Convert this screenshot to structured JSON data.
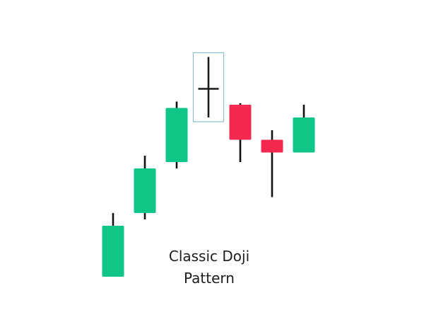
{
  "caption": {
    "line1": "Classic Doji",
    "line2": "Pattern"
  },
  "colors": {
    "bullish": "#0fc687",
    "bearish": "#f5284f",
    "doji": "#1a1a1a",
    "wick": "#111111",
    "highlight_box": "#8cc2cf",
    "background": "#ffffff"
  },
  "chart_data": {
    "type": "candlestick",
    "highlight_index": 3,
    "candles": [
      {
        "open": 4,
        "close": 20,
        "high": 24,
        "low": 4,
        "direction": "up"
      },
      {
        "open": 24,
        "close": 38,
        "high": 42,
        "low": 22,
        "direction": "up"
      },
      {
        "open": 40,
        "close": 57,
        "high": 59,
        "low": 38,
        "direction": "up"
      },
      {
        "open": 63,
        "close": 63,
        "high": 73,
        "low": 54,
        "direction": "doji"
      },
      {
        "open": 58,
        "close": 47,
        "high": 58.5,
        "low": 40,
        "direction": "down"
      },
      {
        "open": 47,
        "close": 43,
        "high": 50,
        "low": 29,
        "direction": "down"
      },
      {
        "open": 43,
        "close": 54,
        "high": 58,
        "low": 43,
        "direction": "up"
      }
    ]
  }
}
